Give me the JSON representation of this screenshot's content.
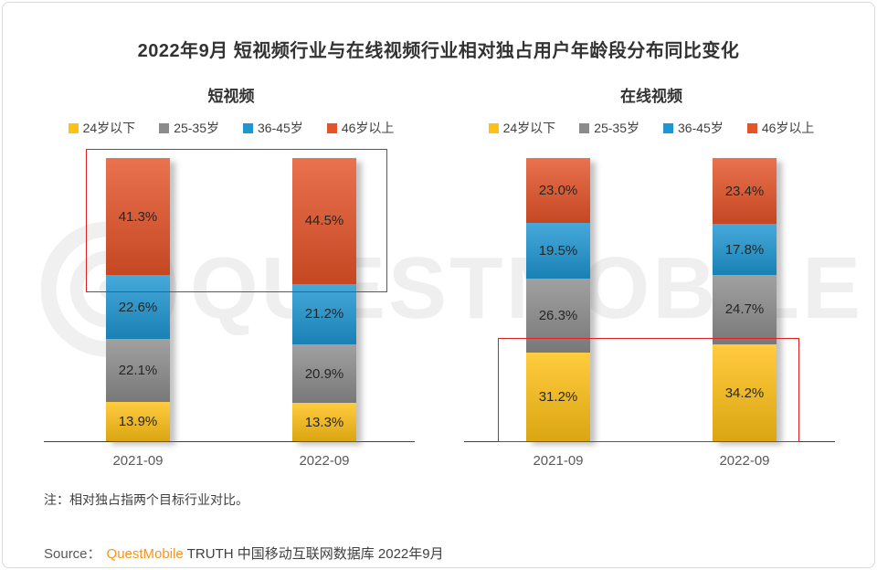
{
  "title": "2022年9月 短视频行业与在线视频行业相对独占用户年龄段分布同比变化",
  "watermark": {
    "text": "QUESTMOBILE"
  },
  "legend": {
    "items": [
      {
        "label": "24岁以下",
        "color": "#FFC115"
      },
      {
        "label": "25-35岁",
        "color": "#8C8C8C"
      },
      {
        "label": "36-45岁",
        "color": "#1E96D2"
      },
      {
        "label": "46岁以上",
        "color": "#E55328"
      }
    ]
  },
  "chart_data": [
    {
      "type": "bar",
      "stacked": true,
      "title": "短视频",
      "categories": [
        "2021-09",
        "2022-09"
      ],
      "series": [
        {
          "name": "24岁以下",
          "color": "#FFC115",
          "values": [
            13.9,
            13.3
          ],
          "labels": [
            "13.9%",
            "13.3%"
          ]
        },
        {
          "name": "25-35岁",
          "color": "#8C8C8C",
          "values": [
            22.1,
            20.9
          ],
          "labels": [
            "22.1%",
            "20.9%"
          ]
        },
        {
          "name": "36-45岁",
          "color": "#1E96D2",
          "values": [
            22.6,
            21.2
          ],
          "labels": [
            "22.6%",
            "21.2%"
          ]
        },
        {
          "name": "46岁以上",
          "color": "#E55328",
          "values": [
            41.3,
            44.5
          ],
          "labels": [
            "41.3%",
            "44.5%"
          ]
        }
      ],
      "ylim": [
        0,
        100
      ],
      "value_suffix": "%",
      "legend_position": "top",
      "highlighted_series": "46岁以上"
    },
    {
      "type": "bar",
      "stacked": true,
      "title": "在线视频",
      "categories": [
        "2021-09",
        "2022-09"
      ],
      "series": [
        {
          "name": "24岁以下",
          "color": "#FFC115",
          "values": [
            31.2,
            34.2
          ],
          "labels": [
            "31.2%",
            "34.2%"
          ]
        },
        {
          "name": "25-35岁",
          "color": "#8C8C8C",
          "values": [
            26.3,
            24.7
          ],
          "labels": [
            "26.3%",
            "24.7%"
          ]
        },
        {
          "name": "36-45岁",
          "color": "#1E96D2",
          "values": [
            19.5,
            17.8
          ],
          "labels": [
            "19.5%",
            "17.8%"
          ]
        },
        {
          "name": "46岁以上",
          "color": "#E55328",
          "values": [
            23.0,
            23.4
          ],
          "labels": [
            "23.0%",
            "23.4%"
          ]
        }
      ],
      "ylim": [
        0,
        100
      ],
      "value_suffix": "%",
      "legend_position": "top",
      "highlighted_series": "24岁以下"
    }
  ],
  "note": "注：相对独占指两个目标行业对比。",
  "source": {
    "label": "Source：",
    "brand": "QuestMobile",
    "rest": "TRUTH 中国移动互联网数据库 2022年9月",
    "brand_color": "#F7941D"
  }
}
